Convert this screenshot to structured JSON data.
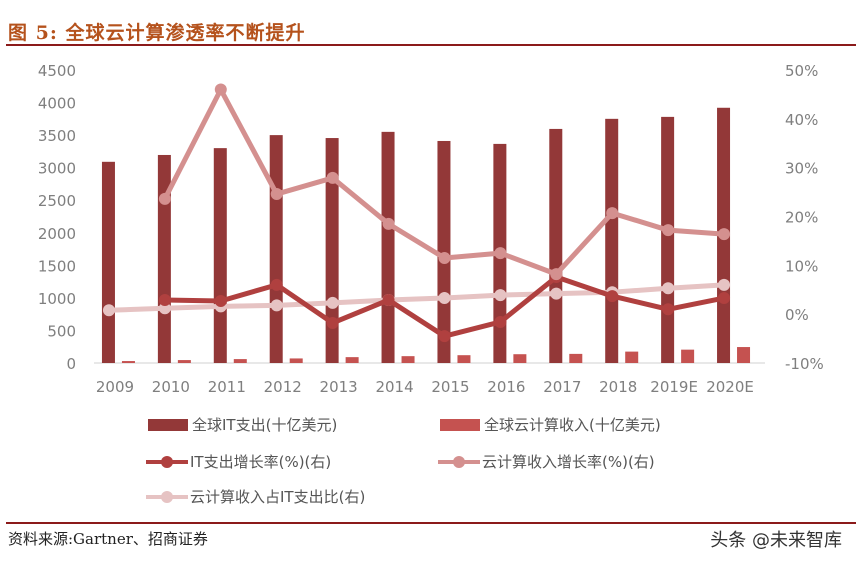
{
  "header": {
    "title": "图 5:  全球云计算渗透率不断提升"
  },
  "footer": {
    "source": "资料来源:Gartner、招商证券",
    "watermark": "头条 @未来智库"
  },
  "colors": {
    "it_spend_bar": "#933838",
    "cloud_rev_bar": "#c55250",
    "it_growth_line": "#b0403f",
    "cloud_growth_line": "#d4908f",
    "cloud_ratio_line": "#e6c3c3",
    "axis_text": "#7f7f7f",
    "axis_line": "#d0d0d0",
    "title": "#b5521c",
    "rule": "#8b1a1a"
  },
  "chart_data": {
    "type": "bar+line",
    "title": "全球云计算渗透率不断提升",
    "categories": [
      "2009",
      "2010",
      "2011",
      "2012",
      "2013",
      "2014",
      "2015",
      "2016",
      "2017",
      "2018",
      "2019E",
      "2020E"
    ],
    "left_axis": {
      "ylim": [
        0,
        4500
      ],
      "ticks": [
        "0",
        "500",
        "1000",
        "1500",
        "2000",
        "2500",
        "3000",
        "3500",
        "4000",
        "4500"
      ],
      "tick_values": [
        0,
        500,
        1000,
        1500,
        2000,
        2500,
        3000,
        3500,
        4000,
        4500
      ]
    },
    "right_axis": {
      "ylim": [
        -10,
        50
      ],
      "ticks": [
        "-10%",
        "0%",
        "10%",
        "20%",
        "30%",
        "40%",
        "50%"
      ],
      "tick_values": [
        -10,
        0,
        10,
        20,
        30,
        40,
        50
      ]
    },
    "grid": false,
    "legend_position": "bottom",
    "series": [
      {
        "name": "全球IT支出(十亿美元)",
        "kind": "bar",
        "axis": "left",
        "values": [
          3090,
          3195,
          3300,
          3500,
          3455,
          3550,
          3410,
          3365,
          3595,
          3750,
          3780,
          3920
        ]
      },
      {
        "name": "全球云计算收入(十亿美元)",
        "kind": "bar",
        "axis": "left",
        "values": [
          30,
          45,
          60,
          70,
          90,
          105,
          120,
          135,
          140,
          175,
          205,
          245
        ]
      },
      {
        "name": "IT支出增长率(%)(右)",
        "kind": "line",
        "axis": "right",
        "values": [
          null,
          2.9,
          2.7,
          6.0,
          -1.8,
          2.9,
          -4.5,
          -1.6,
          7.6,
          3.7,
          1.0,
          3.3
        ]
      },
      {
        "name": "云计算收入增长率(%)(右)",
        "kind": "line",
        "axis": "right",
        "values": [
          null,
          23.6,
          46.0,
          24.6,
          27.9,
          18.5,
          11.5,
          12.5,
          8.2,
          20.7,
          17.2,
          16.4
        ]
      },
      {
        "name": "云计算收入占IT支出比(右)",
        "kind": "line",
        "axis": "right",
        "values": [
          0.8,
          1.2,
          1.6,
          1.8,
          2.3,
          2.9,
          3.3,
          3.9,
          4.2,
          4.5,
          5.3,
          6.0
        ]
      }
    ]
  },
  "legend": [
    {
      "label": "全球IT支出(十亿美元)",
      "type": "bar",
      "color": "#933838"
    },
    {
      "label": "全球云计算收入(十亿美元)",
      "type": "bar",
      "color": "#c55250"
    },
    {
      "label": "IT支出增长率(%)(右)",
      "type": "line",
      "color": "#b0403f"
    },
    {
      "label": "云计算收入增长率(%)(右)",
      "type": "line",
      "color": "#d4908f"
    },
    {
      "label": "云计算收入占IT支出比(右)",
      "type": "line",
      "color": "#e6c3c3"
    }
  ]
}
